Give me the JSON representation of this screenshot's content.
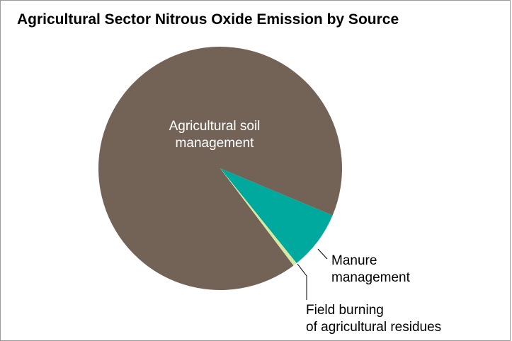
{
  "chart_data": {
    "type": "pie",
    "title": "Agricultural Sector Nitrous Oxide Emission by Source",
    "categories": [
      "Agricultural soil management",
      "Manure management",
      "Field burning of agricultural residues"
    ],
    "values": [
      91.6,
      7.9,
      0.5
    ],
    "colors": [
      "#736357",
      "#00a99d",
      "#d6e9a4"
    ]
  }
}
